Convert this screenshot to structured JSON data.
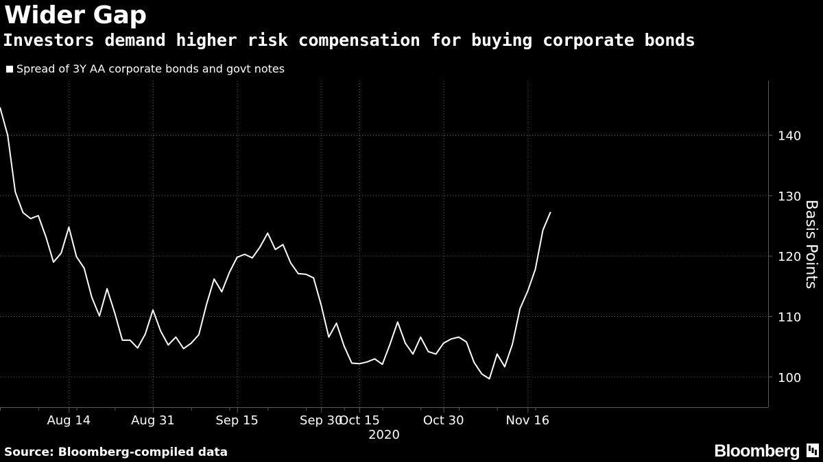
{
  "header": {
    "title": "Wider Gap",
    "subtitle": "Investors demand higher risk compensation for buying corporate bonds"
  },
  "legend": {
    "series_label": "Spread of 3Y AA corporate bonds and govt notes"
  },
  "footer": {
    "source": "Source: Bloomberg-compiled data",
    "brand": "Bloomberg"
  },
  "colors": {
    "background": "#000000",
    "line": "#ffffff",
    "grid": "#5a5a5a",
    "text": "#ffffff"
  },
  "chart_data": {
    "type": "line",
    "title": "Wider Gap",
    "subtitle": "Investors demand higher risk compensation for buying corporate bonds",
    "ylabel": "Basis Points",
    "ylim": [
      95,
      149
    ],
    "yticks": [
      100,
      110,
      120,
      130,
      140
    ],
    "y_axis_side": "right",
    "x_tick_labels": [
      "Aug 14",
      "Aug 31",
      "Sep 15",
      "Sep 30",
      "Oct 15",
      "Oct 30",
      "Nov 16"
    ],
    "x_year_label": "2020",
    "x_tick_indices": [
      9,
      20,
      31,
      42,
      47,
      58,
      69
    ],
    "x_count": 73,
    "series": [
      {
        "name": "Spread of 3Y AA corporate bonds and govt notes",
        "values": [
          144.6,
          140.0,
          130.6,
          127.2,
          126.2,
          126.7,
          123.2,
          119.0,
          120.5,
          124.8,
          119.9,
          118.0,
          113.2,
          110.1,
          114.6,
          110.6,
          106.1,
          106.1,
          104.8,
          107.1,
          111.1,
          107.6,
          105.3,
          106.6,
          104.7,
          105.6,
          107.0,
          112.0,
          116.2,
          114.1,
          117.3,
          119.8,
          120.3,
          119.7,
          121.5,
          123.8,
          121.1,
          121.9,
          118.9,
          117.1,
          117.0,
          116.4,
          111.9,
          106.6,
          108.9,
          105.1,
          102.3,
          102.2,
          102.5,
          103.0,
          102.1,
          105.4,
          109.1,
          105.6,
          103.8,
          106.6,
          104.2,
          103.8,
          105.6,
          106.3,
          106.6,
          105.8,
          102.4,
          100.5,
          99.7,
          103.8,
          101.7,
          105.4,
          111.3,
          114.2,
          117.8,
          124.3,
          127.3
        ]
      }
    ]
  }
}
